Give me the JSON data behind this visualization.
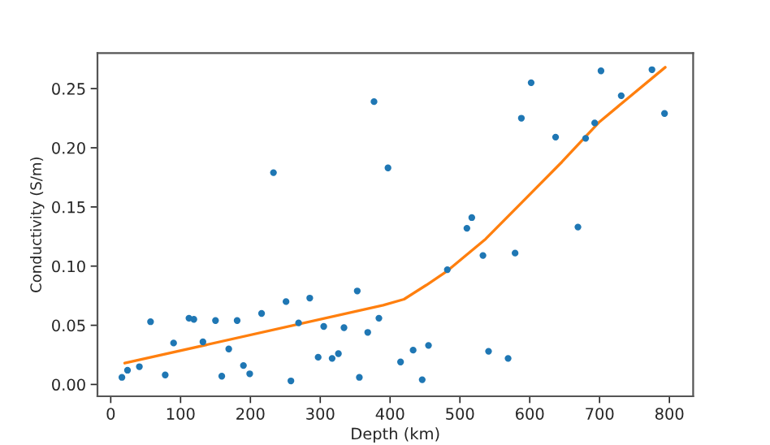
{
  "chart_data": {
    "type": "scatter",
    "xlabel": "Depth (km)",
    "ylabel": "Conductivity (S/m)",
    "xlim": [
      -19,
      834
    ],
    "ylim": [
      -0.01,
      0.28
    ],
    "xticks": [
      0,
      100,
      200,
      300,
      400,
      500,
      600,
      700,
      800
    ],
    "yticks": [
      {
        "value": 0,
        "label": "0.00"
      },
      {
        "value": 0.05,
        "label": "0.05"
      },
      {
        "value": 0.1,
        "label": "0.10"
      },
      {
        "value": 0.15,
        "label": "0.15"
      },
      {
        "value": 0.2,
        "label": "0.20"
      },
      {
        "value": 0.25,
        "label": "0.25"
      }
    ],
    "grid": false,
    "legend": false,
    "series": [
      {
        "color": "#1f77b4",
        "marker": "circle",
        "x": [
          16,
          24,
          41,
          57,
          78,
          90,
          112,
          119,
          132,
          150,
          159,
          169,
          181,
          190,
          199,
          216,
          233,
          251,
          258,
          269,
          285,
          297,
          305,
          317,
          326,
          334,
          353,
          356,
          368,
          377,
          384,
          397,
          415,
          433,
          446,
          455,
          482,
          510,
          517,
          533,
          541,
          569,
          579,
          588,
          602,
          637,
          669,
          680,
          693,
          702,
          731,
          775,
          793
        ],
        "values": [
          0.006,
          0.012,
          0.015,
          0.053,
          0.008,
          0.035,
          0.056,
          0.055,
          0.036,
          0.054,
          0.007,
          0.03,
          0.054,
          0.016,
          0.009,
          0.06,
          0.179,
          0.07,
          0.003,
          0.052,
          0.073,
          0.023,
          0.049,
          0.022,
          0.026,
          0.048,
          0.079,
          0.006,
          0.044,
          0.239,
          0.056,
          0.183,
          0.019,
          0.029,
          0.004,
          0.033,
          0.097,
          0.132,
          0.141,
          0.109,
          0.028,
          0.022,
          0.111,
          0.225,
          0.255,
          0.209,
          0.133,
          0.208,
          0.221,
          0.265,
          0.244,
          0.266,
          0.229
        ]
      },
      {
        "type": "line",
        "color": "#ff7f0e",
        "marker": "none",
        "line_style": "solid",
        "x": [
          20,
          390,
          420,
          452,
          482,
          537,
          584,
          646,
          700,
          794
        ],
        "values": [
          0.018,
          0.067,
          0.072,
          0.084,
          0.096,
          0.123,
          0.151,
          0.188,
          0.222,
          0.268
        ]
      }
    ]
  }
}
